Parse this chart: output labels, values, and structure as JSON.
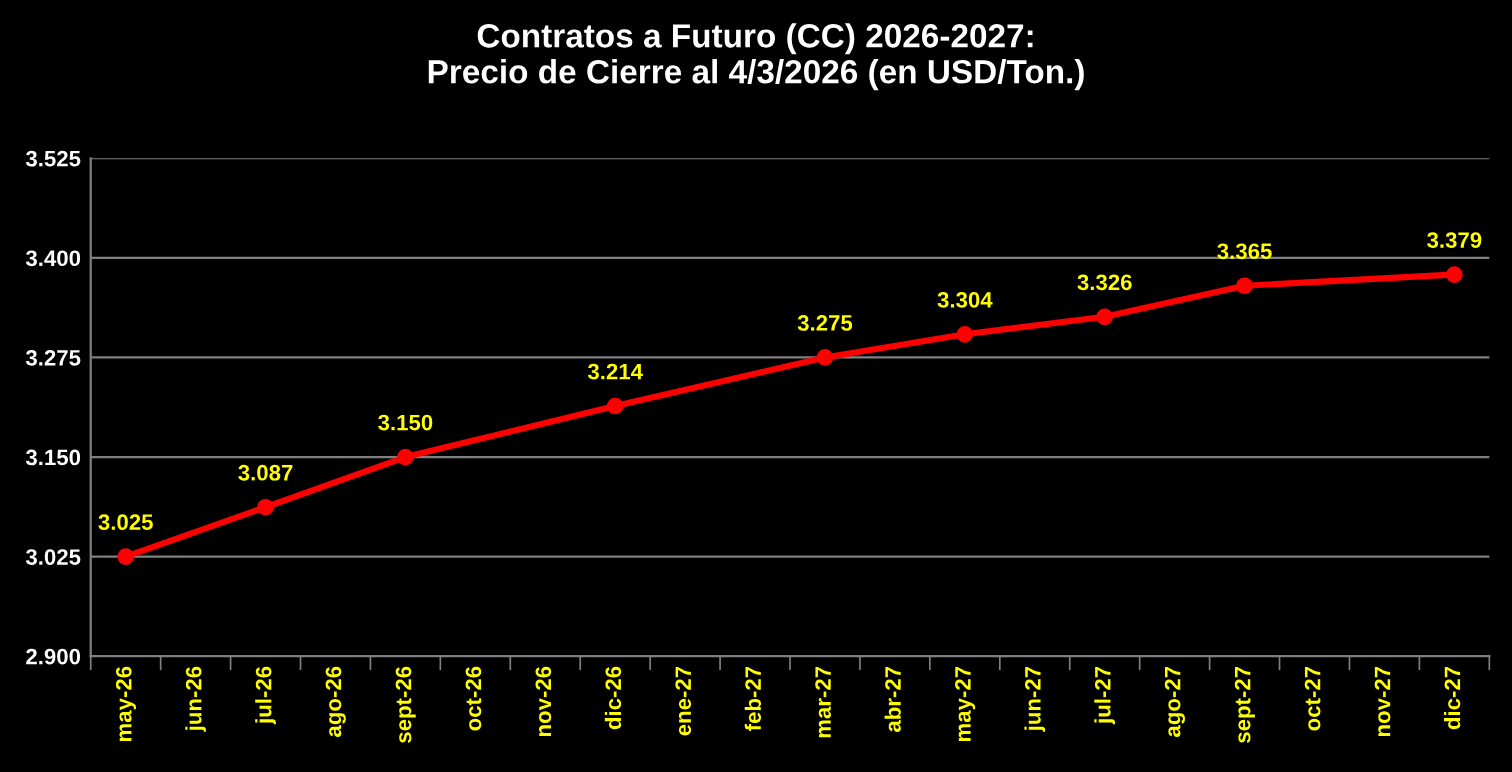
{
  "chart_data": {
    "type": "line",
    "title": "Contratos a Futuro (CC) 2026-2027:\nPrecio de Cierre al 4/3/2026 (en USD/Ton.)",
    "categories": [
      "may-26",
      "jun-26",
      "jul-26",
      "ago-26",
      "sept-26",
      "oct-26",
      "nov-26",
      "dic-26",
      "ene-27",
      "feb-27",
      "mar-27",
      "abr-27",
      "may-27",
      "jun-27",
      "jul-27",
      "ago-27",
      "sept-27",
      "oct-27",
      "nov-27",
      "dic-27"
    ],
    "series": [
      {
        "color": "#ff0000",
        "values": [
          3025,
          null,
          3087,
          null,
          3150,
          null,
          null,
          3214,
          null,
          null,
          3275,
          null,
          3304,
          null,
          3326,
          null,
          3365,
          null,
          null,
          3379
        ],
        "value_labels": [
          "3.025",
          null,
          "3.087",
          null,
          "3.150",
          null,
          null,
          "3.214",
          null,
          null,
          "3.275",
          null,
          "3.304",
          null,
          "3.326",
          null,
          "3.365",
          null,
          null,
          "3.379"
        ]
      }
    ],
    "ylim": [
      2900,
      3525
    ],
    "yticks": [
      {
        "value": 2900,
        "label": "2.900"
      },
      {
        "value": 3025,
        "label": "3.025"
      },
      {
        "value": 3150,
        "label": "3.150"
      },
      {
        "value": 3275,
        "label": "3.275"
      },
      {
        "value": 3400,
        "label": "3.400"
      },
      {
        "value": 3525,
        "label": "3.525"
      }
    ],
    "grid": "y",
    "marker": "circle",
    "line_style": "solid"
  }
}
